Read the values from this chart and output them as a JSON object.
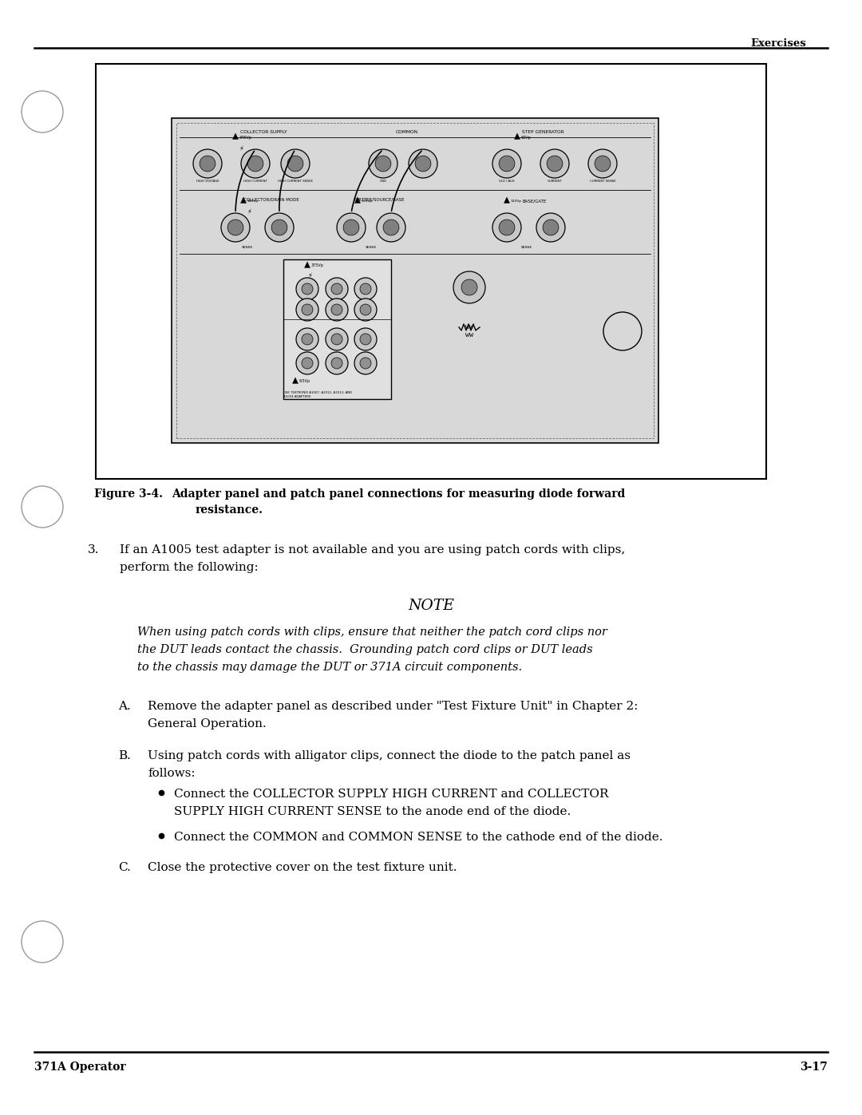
{
  "page_bg": "#ffffff",
  "header_text": "Exercises",
  "footer_left": "371A Operator",
  "footer_right": "3-17",
  "figure_caption_label": "Figure 3-4.",
  "figure_caption_text": "Adapter panel and patch panel connections for measuring diode forward\nresistance.",
  "note_title": "NOTE",
  "note_line1": "When using patch cords with clips, ensure that neither the patch cord clips nor",
  "note_line2": "the DUT leads contact the chassis.  Grounding patch cord clips or DUT leads",
  "note_line3": "to the chassis may damage the DUT or 371A circuit components.",
  "stepA_label": "A.",
  "stepA_line1": "Remove the adapter panel as described under \"Test Fixture Unit\" in Chapter 2:",
  "stepA_line2": "General Operation.",
  "stepB_label": "B.",
  "stepB_line1": "Using patch cords with alligator clips, connect the diode to the patch panel as",
  "stepB_line2": "follows:",
  "bulletB1_line1": "Connect the COLLECTOR SUPPLY HIGH CURRENT and COLLECTOR",
  "bulletB1_line2": "SUPPLY HIGH CURRENT SENSE to the anode end of the diode.",
  "bulletB2": "Connect the COMMON and COMMON SENSE to the cathode end of the diode.",
  "stepC_label": "C.",
  "stepC_text": "Close the protective cover on the test fixture unit.",
  "item3_line1": "If an A1005 test adapter is not available and you are using patch cords with clips,",
  "item3_line2": "perform the following:"
}
